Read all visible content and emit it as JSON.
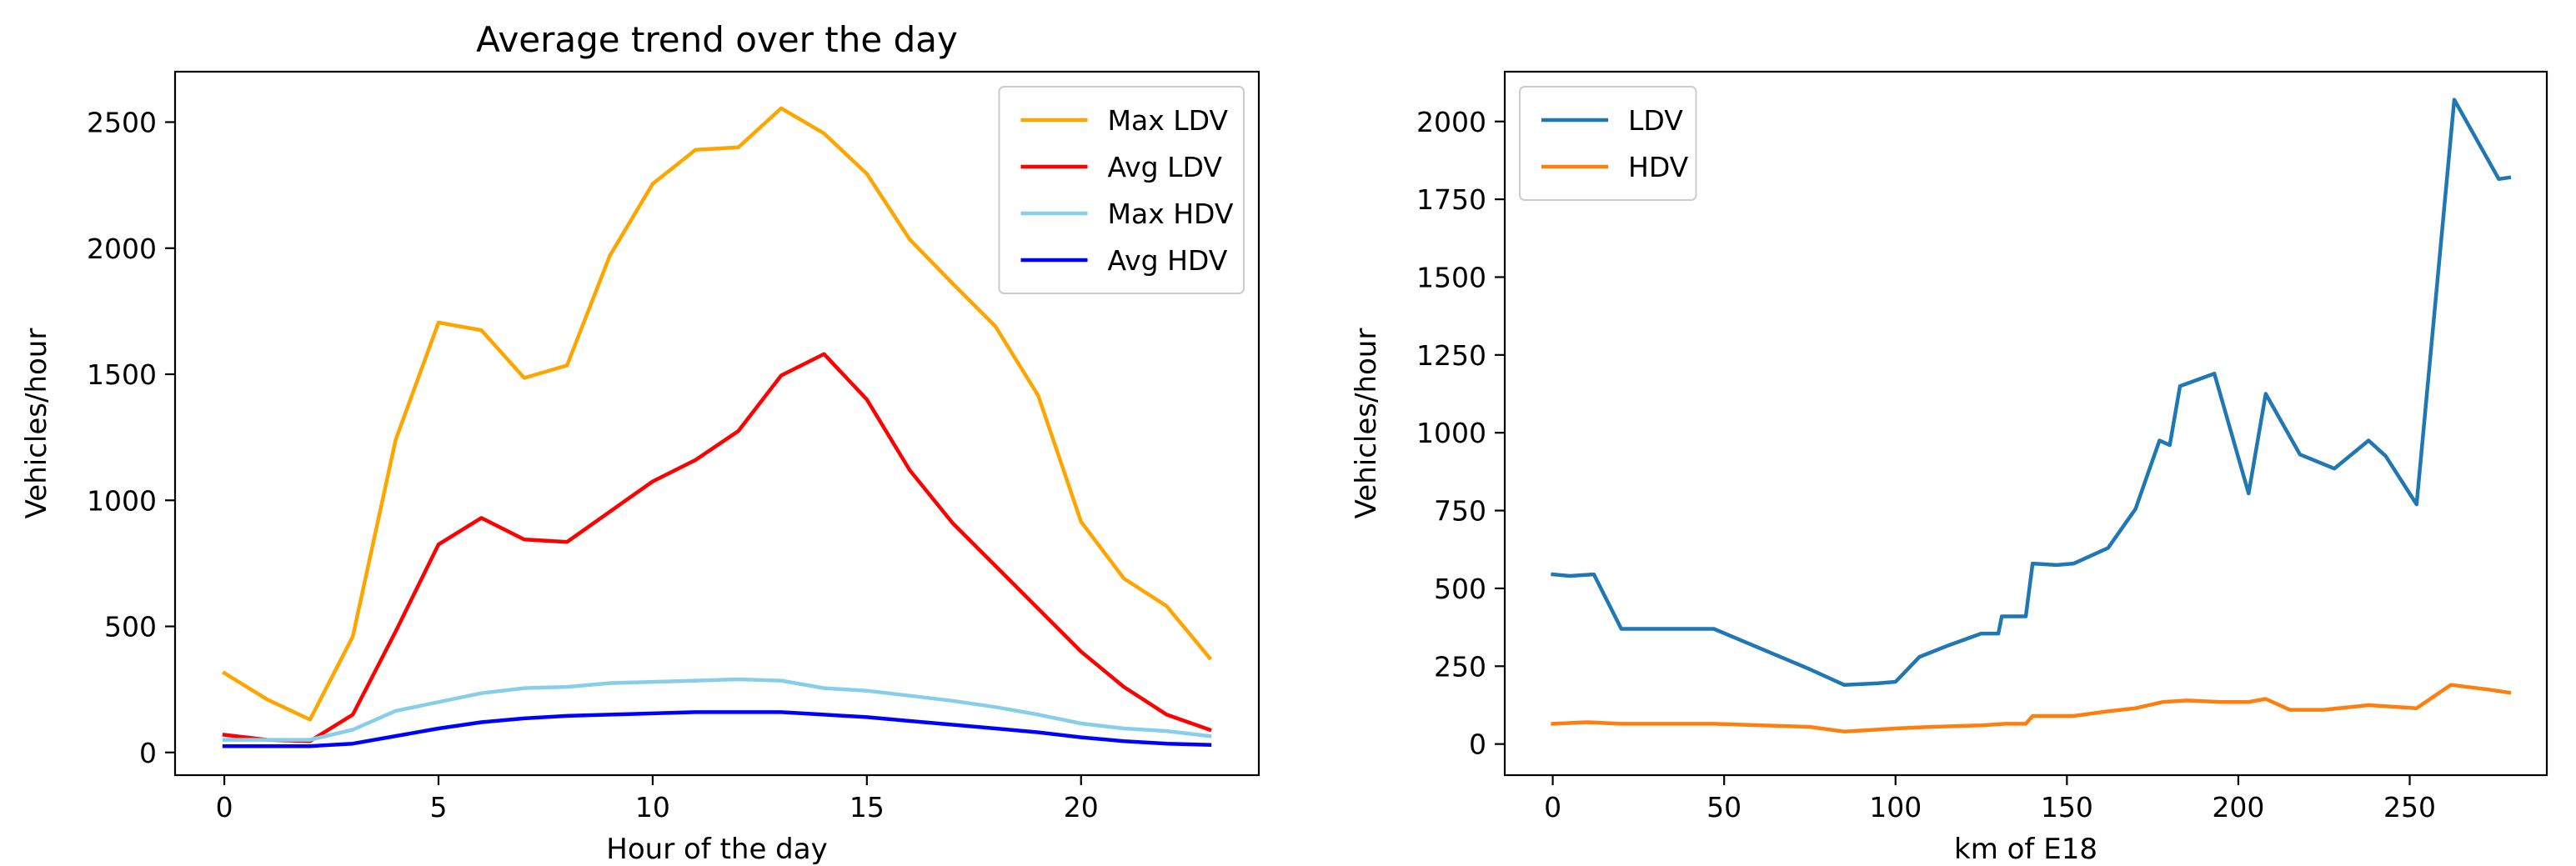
{
  "chart_data": [
    {
      "type": "line",
      "title": "Average trend over the day",
      "xlabel": "Hour of the day",
      "ylabel": "Vehicles/hour",
      "xlim": [
        -1.15,
        24.15
      ],
      "ylim": [
        -90,
        2700
      ],
      "xticks": [
        0,
        5,
        10,
        15,
        20
      ],
      "yticks": [
        0,
        500,
        1000,
        1500,
        2000,
        2500
      ],
      "legend_position": "top-right",
      "x": [
        0,
        1,
        2,
        3,
        4,
        5,
        6,
        7,
        8,
        9,
        10,
        11,
        12,
        13,
        14,
        15,
        16,
        17,
        18,
        19,
        20,
        21,
        22,
        23
      ],
      "series": [
        {
          "name": "Max LDV",
          "color": "#ffa500",
          "values": [
            315,
            210,
            130,
            460,
            1240,
            1705,
            1675,
            1485,
            1535,
            1970,
            2255,
            2390,
            2400,
            2555,
            2455,
            2295,
            2035,
            1860,
            1690,
            1415,
            915,
            690,
            580,
            375
          ]
        },
        {
          "name": "Avg LDV",
          "color": "#ff0000",
          "values": [
            70,
            50,
            45,
            150,
            480,
            825,
            930,
            845,
            835,
            955,
            1075,
            1160,
            1275,
            1495,
            1580,
            1400,
            1120,
            910,
            740,
            570,
            400,
            260,
            150,
            90
          ]
        },
        {
          "name": "Max HDV",
          "color": "#87ceeb",
          "values": [
            50,
            50,
            50,
            90,
            165,
            200,
            235,
            255,
            260,
            275,
            280,
            285,
            290,
            285,
            255,
            245,
            225,
            205,
            180,
            150,
            115,
            95,
            85,
            65
          ]
        },
        {
          "name": "Avg HDV",
          "color": "#0000ff",
          "values": [
            25,
            25,
            25,
            35,
            65,
            95,
            120,
            135,
            145,
            150,
            155,
            160,
            160,
            160,
            150,
            140,
            125,
            110,
            95,
            80,
            60,
            45,
            35,
            30
          ]
        }
      ]
    },
    {
      "type": "line",
      "title": "",
      "xlabel": "km of E18",
      "ylabel": "Vehicles/hour",
      "xlim": [
        -14,
        290
      ],
      "ylim": [
        -100,
        2160
      ],
      "xticks": [
        0,
        50,
        100,
        150,
        200,
        250
      ],
      "yticks": [
        0,
        250,
        500,
        750,
        1000,
        1250,
        1500,
        1750,
        2000
      ],
      "legend_position": "top-left",
      "series": [
        {
          "name": "LDV",
          "color": "#1f77b4",
          "x": [
            0,
            5,
            12,
            20,
            47,
            75,
            85,
            95,
            100,
            107,
            115,
            125,
            130,
            131,
            138,
            140,
            147,
            152,
            162,
            170,
            177,
            180,
            183,
            193,
            203,
            208,
            218,
            228,
            238,
            243,
            252,
            263,
            276,
            279
          ],
          "values": [
            545,
            540,
            545,
            370,
            370,
            240,
            190,
            195,
            200,
            280,
            315,
            355,
            355,
            410,
            410,
            580,
            575,
            580,
            630,
            755,
            975,
            960,
            1150,
            1190,
            805,
            1125,
            930,
            885,
            975,
            925,
            770,
            2070,
            1815,
            1820
          ]
        },
        {
          "name": "HDV",
          "color": "#ff7f0e",
          "x": [
            0,
            10,
            20,
            47,
            75,
            85,
            100,
            110,
            125,
            132,
            138,
            140,
            143,
            152,
            162,
            170,
            178,
            185,
            195,
            203,
            208,
            215,
            225,
            238,
            252,
            262,
            273,
            279
          ],
          "values": [
            65,
            70,
            65,
            65,
            55,
            40,
            50,
            55,
            60,
            65,
            65,
            90,
            90,
            90,
            105,
            115,
            135,
            140,
            135,
            135,
            145,
            110,
            110,
            125,
            115,
            190,
            175,
            165
          ]
        }
      ]
    }
  ]
}
